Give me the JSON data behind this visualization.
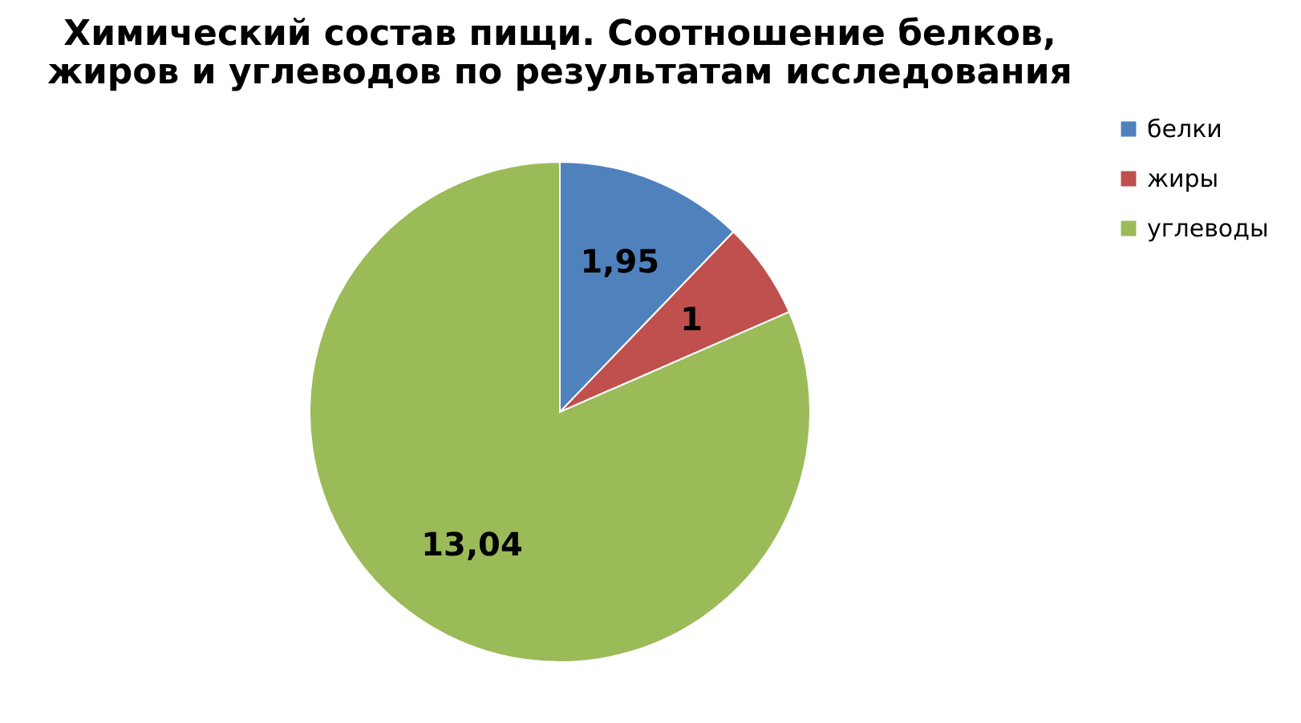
{
  "chart_data": {
    "type": "pie",
    "title": "Химический состав пищи. Соотношение белков,\nжиров и углеводов по результатам исследования",
    "categories": [
      "белки",
      "жиры",
      "углеводы"
    ],
    "values": [
      1.95,
      1,
      13.04
    ],
    "colors": [
      "#4f81bd",
      "#c0504d",
      "#9bbb59"
    ],
    "value_labels": [
      "1,95",
      "1",
      "13,04"
    ],
    "legend": "right"
  }
}
